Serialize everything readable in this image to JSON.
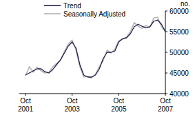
{
  "chart_data": {
    "type": "line",
    "y_label": "no.",
    "categories": [
      "Oct 2001",
      null,
      null,
      null,
      null,
      null,
      null,
      null,
      null,
      null,
      null,
      null,
      "Oct 2003",
      null,
      null,
      null,
      null,
      null,
      null,
      null,
      null,
      null,
      null,
      null,
      "Oct 2005",
      null,
      null,
      null,
      null,
      null,
      null,
      null,
      null,
      null,
      null,
      null,
      "Oct 2007"
    ],
    "series": [
      {
        "name": "Trend",
        "color": "#1f1f4f",
        "values": [
          44500,
          45000,
          45500,
          46000,
          46000,
          45300,
          45000,
          45800,
          47000,
          48200,
          49800,
          51500,
          52500,
          51000,
          47000,
          44500,
          44000,
          44000,
          44500,
          46000,
          48500,
          50000,
          50000,
          50300,
          52500,
          53300,
          53500,
          54500,
          56200,
          56800,
          56300,
          55900,
          56200,
          57500,
          57800,
          56800,
          55000
        ]
      },
      {
        "name": "Seasonally Adjusted",
        "color": "#b4b4b4",
        "values": [
          44300,
          46500,
          45200,
          46400,
          45500,
          45000,
          45100,
          46500,
          47300,
          48000,
          50200,
          52000,
          53000,
          50500,
          46500,
          44000,
          44200,
          43800,
          44700,
          46500,
          48000,
          50500,
          49800,
          50800,
          52800,
          53200,
          53700,
          55000,
          57200,
          56300,
          55800,
          56500,
          56000,
          58300,
          58500,
          56200,
          55000
        ]
      }
    ],
    "ylim": [
      40000,
      60000
    ],
    "yticks": [
      40000,
      45000,
      50000,
      55000,
      60000
    ],
    "grid": false,
    "legend": "top"
  }
}
